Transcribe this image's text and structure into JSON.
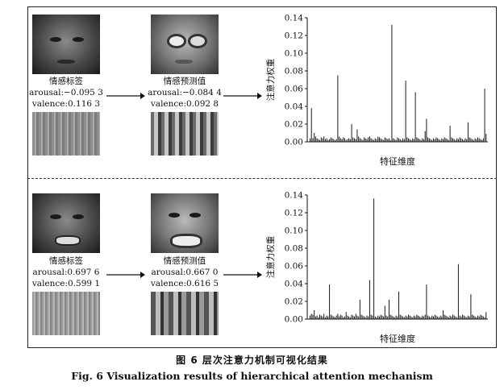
{
  "panels": [
    {
      "true_label_title": "情感标签",
      "true_arousal": "arousal:−0.095 3",
      "true_valence": "valence:0.116 3",
      "pred_label_title": "情感预测值",
      "pred_arousal": "arousal:−0.084 4",
      "pred_valence": "valence:0.092 8"
    },
    {
      "true_label_title": "情感标签",
      "true_arousal": "arousal:0.697 6",
      "true_valence": "valence:0.599 1",
      "pred_label_title": "情感预测值",
      "pred_arousal": "arousal:0.667 0",
      "pred_valence": "valence:0.616 5"
    }
  ],
  "chart_data": [
    {
      "type": "bar",
      "xlabel": "特征维度",
      "ylabel": "注意力权重",
      "ylim": [
        0,
        0.14
      ],
      "yticks": [
        "0.00",
        "0.02",
        "0.04",
        "0.06",
        "0.08",
        "0.10",
        "0.12",
        "0.14"
      ],
      "n_dims": 128,
      "values": [
        0.004,
        0.038,
        0.004,
        0.01,
        0.006,
        0.004,
        0.003,
        0.002,
        0.005,
        0.004,
        0.006,
        0.003,
        0.004,
        0.002,
        0.003,
        0.005,
        0.004,
        0.003,
        0.002,
        0.003,
        0.075,
        0.006,
        0.004,
        0.003,
        0.005,
        0.004,
        0.002,
        0.003,
        0.004,
        0.003,
        0.02,
        0.005,
        0.004,
        0.003,
        0.014,
        0.006,
        0.004,
        0.003,
        0.002,
        0.005,
        0.004,
        0.003,
        0.005,
        0.006,
        0.004,
        0.003,
        0.002,
        0.004,
        0.003,
        0.006,
        0.005,
        0.004,
        0.003,
        0.002,
        0.005,
        0.004,
        0.003,
        0.004,
        0.002,
        0.132,
        0.004,
        0.003,
        0.002,
        0.005,
        0.004,
        0.003,
        0.002,
        0.004,
        0.003,
        0.069,
        0.005,
        0.004,
        0.003,
        0.002,
        0.004,
        0.003,
        0.056,
        0.005,
        0.004,
        0.003,
        0.002,
        0.004,
        0.003,
        0.012,
        0.026,
        0.005,
        0.004,
        0.003,
        0.002,
        0.004,
        0.003,
        0.005,
        0.004,
        0.003,
        0.002,
        0.004,
        0.003,
        0.005,
        0.004,
        0.003,
        0.002,
        0.018,
        0.005,
        0.004,
        0.003,
        0.002,
        0.004,
        0.003,
        0.005,
        0.004,
        0.003,
        0.002,
        0.004,
        0.003,
        0.022,
        0.005,
        0.004,
        0.003,
        0.002,
        0.004,
        0.003,
        0.005,
        0.004,
        0.003,
        0.002,
        0.004,
        0.06,
        0.009
      ]
    },
    {
      "type": "bar",
      "xlabel": "特征维度",
      "ylabel": "注意力权重",
      "ylim": [
        0,
        0.14
      ],
      "yticks": [
        "0.00",
        "0.02",
        "0.04",
        "0.06",
        "0.08",
        "0.10",
        "0.12",
        "0.14"
      ],
      "n_dims": 128,
      "values": [
        0.004,
        0.006,
        0.005,
        0.01,
        0.003,
        0.004,
        0.002,
        0.005,
        0.004,
        0.003,
        0.006,
        0.002,
        0.004,
        0.003,
        0.039,
        0.005,
        0.004,
        0.003,
        0.002,
        0.004,
        0.006,
        0.003,
        0.005,
        0.004,
        0.002,
        0.003,
        0.008,
        0.004,
        0.003,
        0.002,
        0.005,
        0.004,
        0.003,
        0.006,
        0.004,
        0.003,
        0.022,
        0.005,
        0.004,
        0.003,
        0.002,
        0.004,
        0.003,
        0.044,
        0.005,
        0.004,
        0.136,
        0.003,
        0.002,
        0.004,
        0.003,
        0.005,
        0.004,
        0.003,
        0.015,
        0.004,
        0.003,
        0.022,
        0.005,
        0.004,
        0.003,
        0.002,
        0.004,
        0.003,
        0.031,
        0.005,
        0.004,
        0.003,
        0.002,
        0.004,
        0.003,
        0.005,
        0.004,
        0.003,
        0.002,
        0.004,
        0.003,
        0.005,
        0.004,
        0.003,
        0.002,
        0.004,
        0.003,
        0.005,
        0.039,
        0.004,
        0.003,
        0.002,
        0.004,
        0.003,
        0.005,
        0.004,
        0.003,
        0.002,
        0.004,
        0.003,
        0.01,
        0.005,
        0.004,
        0.003,
        0.002,
        0.004,
        0.003,
        0.005,
        0.004,
        0.003,
        0.002,
        0.062,
        0.004,
        0.003,
        0.005,
        0.004,
        0.003,
        0.002,
        0.004,
        0.003,
        0.028,
        0.005,
        0.004,
        0.003,
        0.002,
        0.004,
        0.003,
        0.005,
        0.004,
        0.003,
        0.002,
        0.008
      ]
    }
  ],
  "caption_zh": "图 6   层次注意力机制可视化结果",
  "caption_en": "Fig. 6    Visualization results of hierarchical attention mechanism"
}
